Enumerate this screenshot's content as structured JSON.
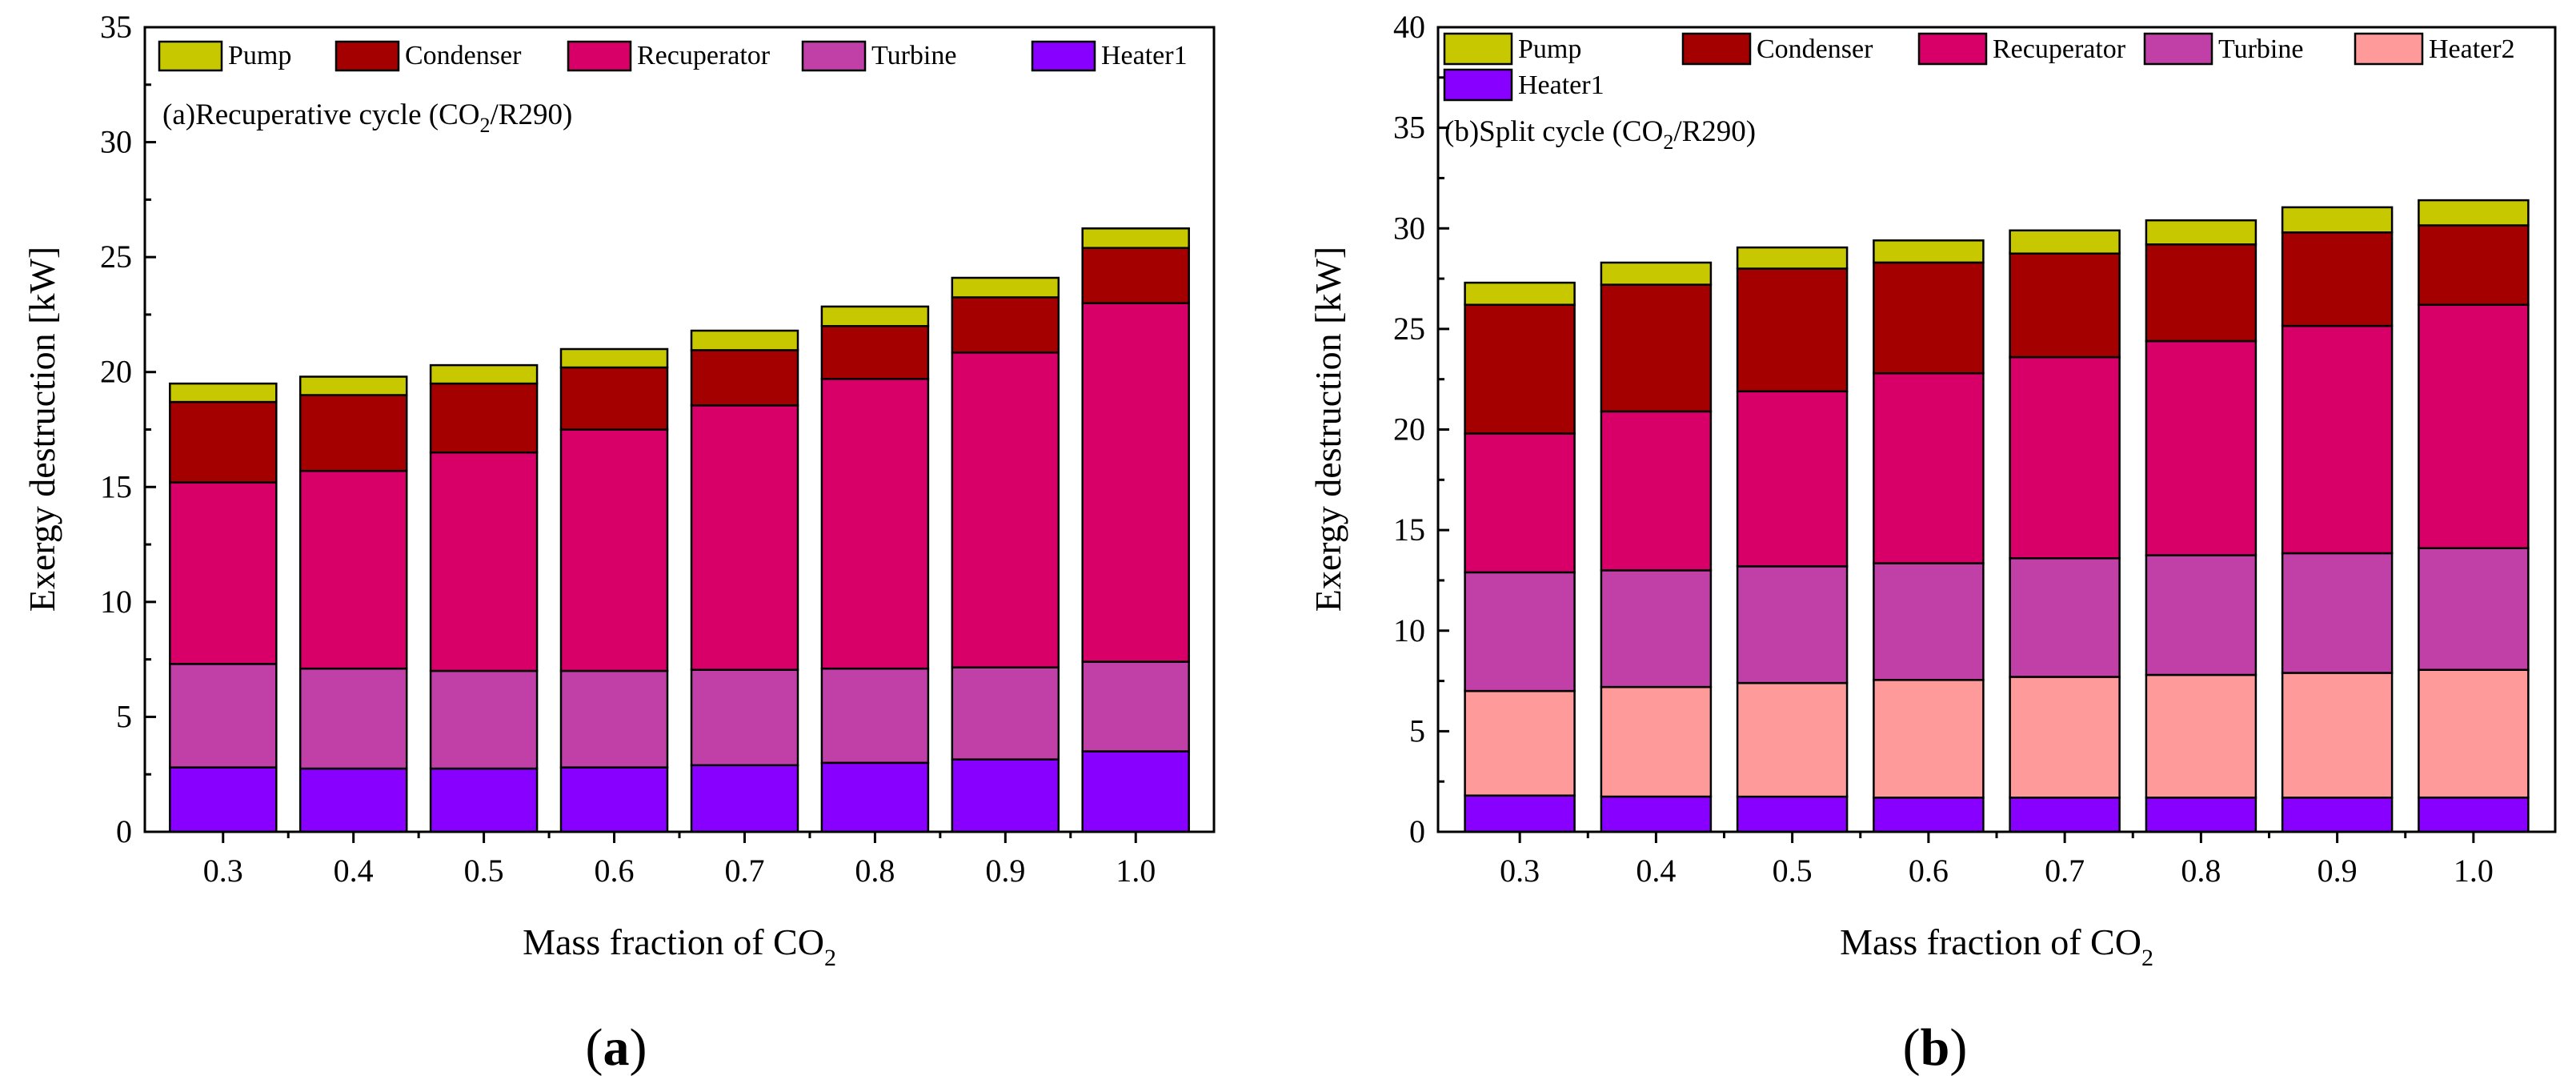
{
  "panels": [
    {
      "caption_open": "(",
      "caption_letter": "a",
      "caption_close": ")",
      "note": {
        "prefix": "(a)Recuperative cycle",
        "paren": "(CO",
        "sub": "2",
        "suffix": "/R290)"
      },
      "ylabel": "Exergy destruction [kW]",
      "xlabel": {
        "main": "Mass fraction of CO",
        "sub": "2"
      }
    },
    {
      "caption_open": "(",
      "caption_letter": "b",
      "caption_close": ")",
      "note": {
        "prefix": "(b)Split cycle",
        "paren": "(CO",
        "sub": "2",
        "suffix": "/R290)"
      },
      "ylabel": "Exergy destruction [kW]",
      "xlabel": {
        "main": "Mass fraction of CO",
        "sub": "2"
      }
    }
  ],
  "chart_data": [
    {
      "type": "bar",
      "stacked": true,
      "title": "(a)Recuperative cycle (CO2/R290)",
      "xlabel": "Mass fraction of CO2",
      "ylabel": "Exergy destruction [kW]",
      "ylim": [
        0,
        35
      ],
      "yticks": [
        0,
        5,
        10,
        15,
        20,
        25,
        30,
        35
      ],
      "categories": [
        "0.3",
        "0.4",
        "0.5",
        "0.6",
        "0.7",
        "0.8",
        "0.9",
        "1.0"
      ],
      "legend_position": "top",
      "series": [
        {
          "name": "Heater1",
          "color": "#8800ff",
          "values": [
            2.8,
            2.75,
            2.75,
            2.8,
            2.9,
            3.0,
            3.15,
            3.5
          ]
        },
        {
          "name": "Turbine",
          "color": "#c040a8",
          "values": [
            4.5,
            4.35,
            4.25,
            4.2,
            4.15,
            4.1,
            4.0,
            3.9
          ]
        },
        {
          "name": "Recuperator",
          "color": "#d80068",
          "values": [
            7.9,
            8.6,
            9.5,
            10.5,
            11.5,
            12.6,
            13.7,
            15.6
          ]
        },
        {
          "name": "Condenser",
          "color": "#a50000",
          "values": [
            3.5,
            3.3,
            3.0,
            2.7,
            2.4,
            2.3,
            2.4,
            2.4
          ]
        },
        {
          "name": "Pump",
          "color": "#c8c800",
          "values": [
            0.8,
            0.8,
            0.8,
            0.8,
            0.85,
            0.85,
            0.85,
            0.85
          ]
        }
      ],
      "legend_order": [
        "Pump",
        "Condenser",
        "Recuperator",
        "Turbine",
        "Heater1"
      ]
    },
    {
      "type": "bar",
      "stacked": true,
      "title": "(b)Split cycle (CO2/R290)",
      "xlabel": "Mass fraction of CO2",
      "ylabel": "Exergy destruction [kW]",
      "ylim": [
        0,
        40
      ],
      "yticks": [
        0,
        5,
        10,
        15,
        20,
        25,
        30,
        35,
        40
      ],
      "categories": [
        "0.3",
        "0.4",
        "0.5",
        "0.6",
        "0.7",
        "0.8",
        "0.9",
        "1.0"
      ],
      "legend_position": "top",
      "series": [
        {
          "name": "Heater1",
          "color": "#8800ff",
          "values": [
            1.8,
            1.75,
            1.75,
            1.7,
            1.7,
            1.7,
            1.7,
            1.7
          ]
        },
        {
          "name": "Heater2",
          "color": "#ff9a9a",
          "values": [
            5.2,
            5.45,
            5.65,
            5.85,
            6.0,
            6.1,
            6.2,
            6.35
          ]
        },
        {
          "name": "Turbine",
          "color": "#c040a8",
          "values": [
            5.9,
            5.8,
            5.8,
            5.8,
            5.9,
            5.95,
            5.95,
            6.05
          ]
        },
        {
          "name": "Recuperator",
          "color": "#d80068",
          "values": [
            6.9,
            7.9,
            8.7,
            9.45,
            10.0,
            10.65,
            11.3,
            12.1
          ]
        },
        {
          "name": "Condenser",
          "color": "#a50000",
          "values": [
            6.4,
            6.3,
            6.1,
            5.5,
            5.15,
            4.8,
            4.65,
            3.95
          ]
        },
        {
          "name": "Pump",
          "color": "#c8c800",
          "values": [
            1.1,
            1.1,
            1.05,
            1.1,
            1.15,
            1.2,
            1.25,
            1.25
          ]
        }
      ],
      "legend_order": [
        "Pump",
        "Condenser",
        "Recuperator",
        "Turbine",
        "Heater2",
        "Heater1"
      ]
    }
  ]
}
